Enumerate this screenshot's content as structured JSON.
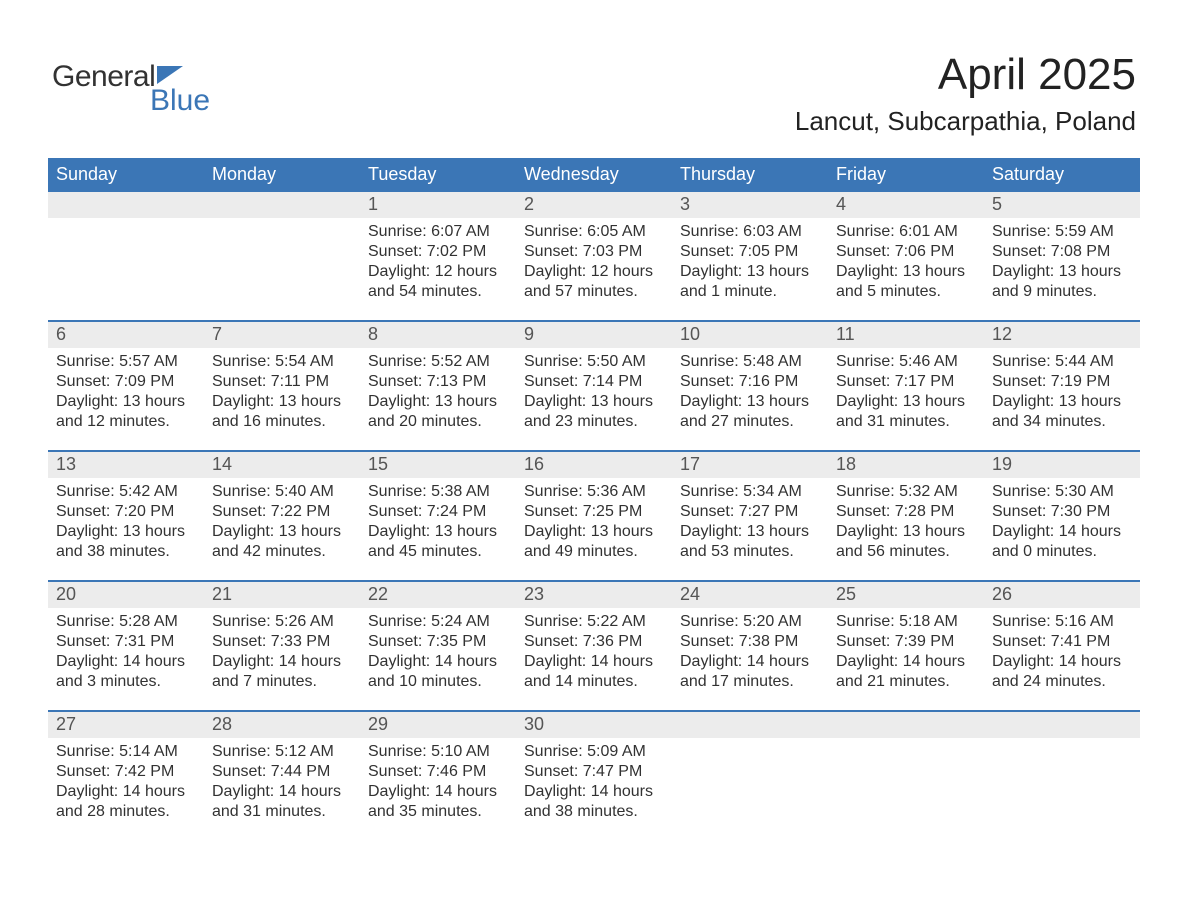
{
  "logo": {
    "text1": "General",
    "text2": "Blue"
  },
  "header": {
    "title": "April 2025",
    "subtitle": "Lancut, Subcarpathia, Poland"
  },
  "colors": {
    "brand_blue": "#3b76b6",
    "daynum_bg": "#ececec",
    "text": "#323232",
    "background": "#ffffff"
  },
  "daynames": [
    "Sunday",
    "Monday",
    "Tuesday",
    "Wednesday",
    "Thursday",
    "Friday",
    "Saturday"
  ],
  "weeks": [
    [
      {
        "day": "",
        "lines": [
          "",
          "",
          "",
          ""
        ]
      },
      {
        "day": "",
        "lines": [
          "",
          "",
          "",
          ""
        ]
      },
      {
        "day": "1",
        "lines": [
          "Sunrise: 6:07 AM",
          "Sunset: 7:02 PM",
          "Daylight: 12 hours",
          "and 54 minutes."
        ]
      },
      {
        "day": "2",
        "lines": [
          "Sunrise: 6:05 AM",
          "Sunset: 7:03 PM",
          "Daylight: 12 hours",
          "and 57 minutes."
        ]
      },
      {
        "day": "3",
        "lines": [
          "Sunrise: 6:03 AM",
          "Sunset: 7:05 PM",
          "Daylight: 13 hours",
          "and 1 minute."
        ]
      },
      {
        "day": "4",
        "lines": [
          "Sunrise: 6:01 AM",
          "Sunset: 7:06 PM",
          "Daylight: 13 hours",
          "and 5 minutes."
        ]
      },
      {
        "day": "5",
        "lines": [
          "Sunrise: 5:59 AM",
          "Sunset: 7:08 PM",
          "Daylight: 13 hours",
          "and 9 minutes."
        ]
      }
    ],
    [
      {
        "day": "6",
        "lines": [
          "Sunrise: 5:57 AM",
          "Sunset: 7:09 PM",
          "Daylight: 13 hours",
          "and 12 minutes."
        ]
      },
      {
        "day": "7",
        "lines": [
          "Sunrise: 5:54 AM",
          "Sunset: 7:11 PM",
          "Daylight: 13 hours",
          "and 16 minutes."
        ]
      },
      {
        "day": "8",
        "lines": [
          "Sunrise: 5:52 AM",
          "Sunset: 7:13 PM",
          "Daylight: 13 hours",
          "and 20 minutes."
        ]
      },
      {
        "day": "9",
        "lines": [
          "Sunrise: 5:50 AM",
          "Sunset: 7:14 PM",
          "Daylight: 13 hours",
          "and 23 minutes."
        ]
      },
      {
        "day": "10",
        "lines": [
          "Sunrise: 5:48 AM",
          "Sunset: 7:16 PM",
          "Daylight: 13 hours",
          "and 27 minutes."
        ]
      },
      {
        "day": "11",
        "lines": [
          "Sunrise: 5:46 AM",
          "Sunset: 7:17 PM",
          "Daylight: 13 hours",
          "and 31 minutes."
        ]
      },
      {
        "day": "12",
        "lines": [
          "Sunrise: 5:44 AM",
          "Sunset: 7:19 PM",
          "Daylight: 13 hours",
          "and 34 minutes."
        ]
      }
    ],
    [
      {
        "day": "13",
        "lines": [
          "Sunrise: 5:42 AM",
          "Sunset: 7:20 PM",
          "Daylight: 13 hours",
          "and 38 minutes."
        ]
      },
      {
        "day": "14",
        "lines": [
          "Sunrise: 5:40 AM",
          "Sunset: 7:22 PM",
          "Daylight: 13 hours",
          "and 42 minutes."
        ]
      },
      {
        "day": "15",
        "lines": [
          "Sunrise: 5:38 AM",
          "Sunset: 7:24 PM",
          "Daylight: 13 hours",
          "and 45 minutes."
        ]
      },
      {
        "day": "16",
        "lines": [
          "Sunrise: 5:36 AM",
          "Sunset: 7:25 PM",
          "Daylight: 13 hours",
          "and 49 minutes."
        ]
      },
      {
        "day": "17",
        "lines": [
          "Sunrise: 5:34 AM",
          "Sunset: 7:27 PM",
          "Daylight: 13 hours",
          "and 53 minutes."
        ]
      },
      {
        "day": "18",
        "lines": [
          "Sunrise: 5:32 AM",
          "Sunset: 7:28 PM",
          "Daylight: 13 hours",
          "and 56 minutes."
        ]
      },
      {
        "day": "19",
        "lines": [
          "Sunrise: 5:30 AM",
          "Sunset: 7:30 PM",
          "Daylight: 14 hours",
          "and 0 minutes."
        ]
      }
    ],
    [
      {
        "day": "20",
        "lines": [
          "Sunrise: 5:28 AM",
          "Sunset: 7:31 PM",
          "Daylight: 14 hours",
          "and 3 minutes."
        ]
      },
      {
        "day": "21",
        "lines": [
          "Sunrise: 5:26 AM",
          "Sunset: 7:33 PM",
          "Daylight: 14 hours",
          "and 7 minutes."
        ]
      },
      {
        "day": "22",
        "lines": [
          "Sunrise: 5:24 AM",
          "Sunset: 7:35 PM",
          "Daylight: 14 hours",
          "and 10 minutes."
        ]
      },
      {
        "day": "23",
        "lines": [
          "Sunrise: 5:22 AM",
          "Sunset: 7:36 PM",
          "Daylight: 14 hours",
          "and 14 minutes."
        ]
      },
      {
        "day": "24",
        "lines": [
          "Sunrise: 5:20 AM",
          "Sunset: 7:38 PM",
          "Daylight: 14 hours",
          "and 17 minutes."
        ]
      },
      {
        "day": "25",
        "lines": [
          "Sunrise: 5:18 AM",
          "Sunset: 7:39 PM",
          "Daylight: 14 hours",
          "and 21 minutes."
        ]
      },
      {
        "day": "26",
        "lines": [
          "Sunrise: 5:16 AM",
          "Sunset: 7:41 PM",
          "Daylight: 14 hours",
          "and 24 minutes."
        ]
      }
    ],
    [
      {
        "day": "27",
        "lines": [
          "Sunrise: 5:14 AM",
          "Sunset: 7:42 PM",
          "Daylight: 14 hours",
          "and 28 minutes."
        ]
      },
      {
        "day": "28",
        "lines": [
          "Sunrise: 5:12 AM",
          "Sunset: 7:44 PM",
          "Daylight: 14 hours",
          "and 31 minutes."
        ]
      },
      {
        "day": "29",
        "lines": [
          "Sunrise: 5:10 AM",
          "Sunset: 7:46 PM",
          "Daylight: 14 hours",
          "and 35 minutes."
        ]
      },
      {
        "day": "30",
        "lines": [
          "Sunrise: 5:09 AM",
          "Sunset: 7:47 PM",
          "Daylight: 14 hours",
          "and 38 minutes."
        ]
      },
      {
        "day": "",
        "lines": [
          "",
          "",
          "",
          ""
        ]
      },
      {
        "day": "",
        "lines": [
          "",
          "",
          "",
          ""
        ]
      },
      {
        "day": "",
        "lines": [
          "",
          "",
          "",
          ""
        ]
      }
    ]
  ]
}
